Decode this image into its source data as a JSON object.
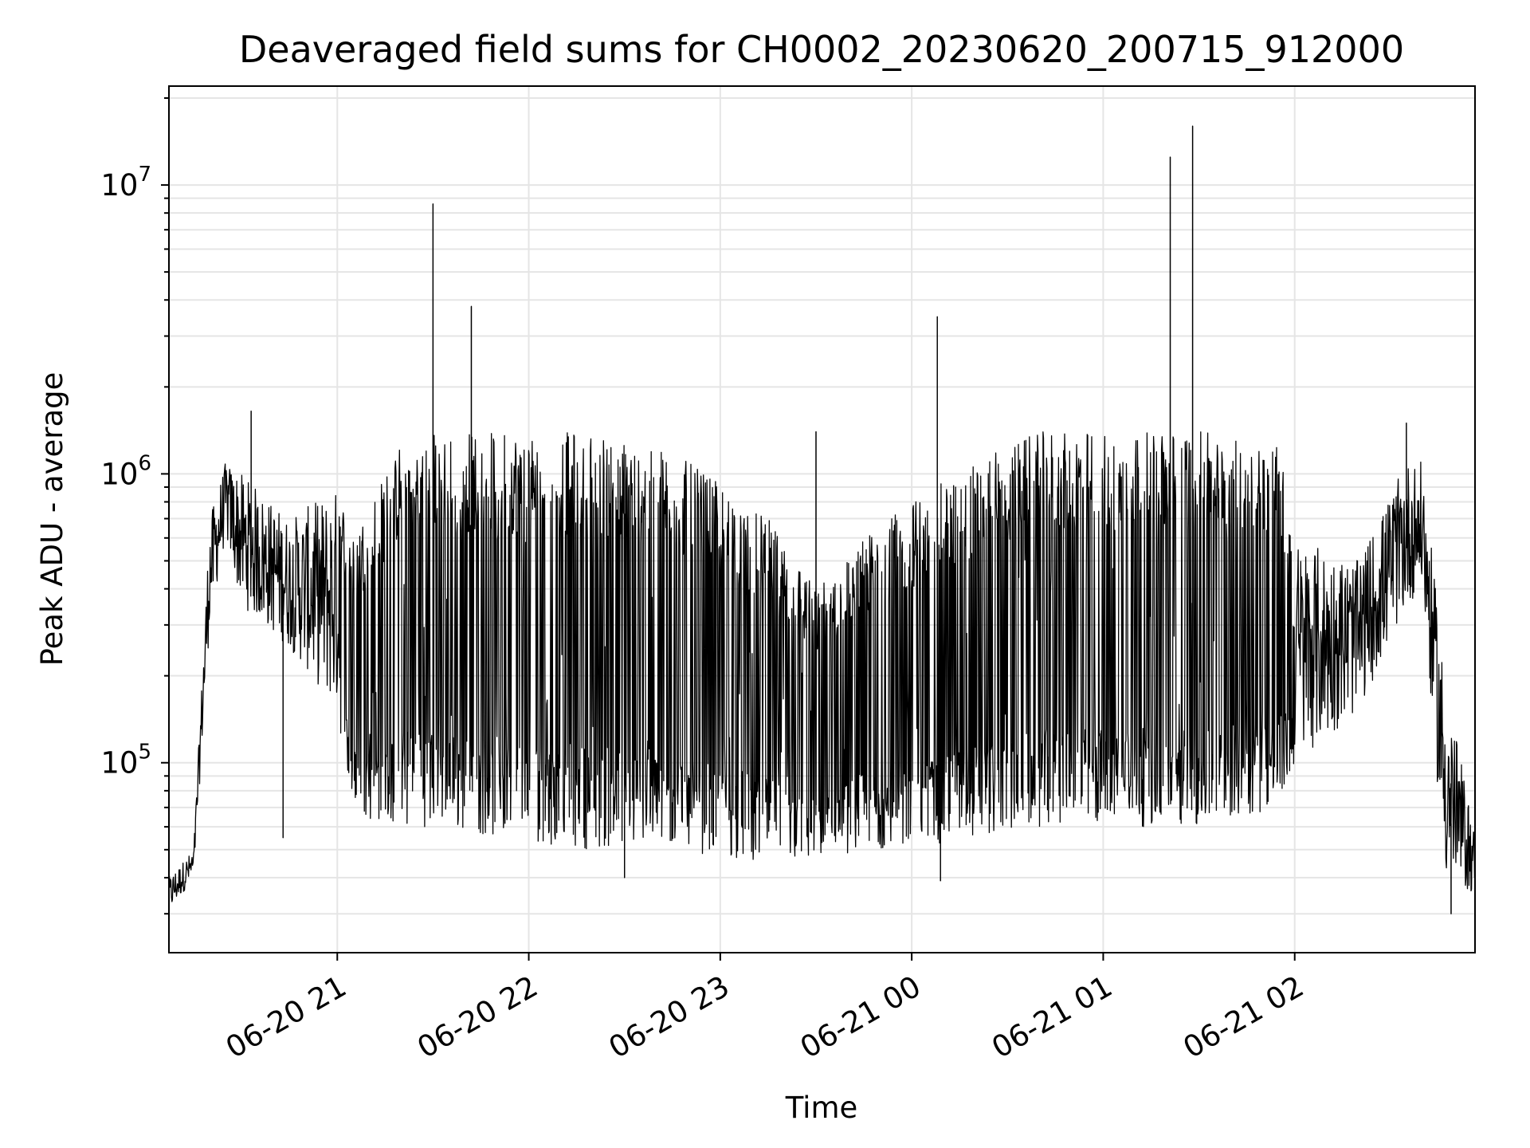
{
  "chart_data": {
    "type": "line",
    "title": "Deaveraged field sums for CH0002_20230620_200715_912000",
    "xlabel": "Time",
    "ylabel": "Peak ADU - average",
    "yscale": "log",
    "ylim": [
      22000,
      22000000
    ],
    "xlim": [
      "2023-06-20 20:07:15",
      "2023-06-21 02:56:30"
    ],
    "grid": true,
    "line_color": "#000000",
    "grid_color": "#e5e5e5",
    "x_ticks": [
      {
        "t": "2023-06-20 21:00",
        "label": "06-20 21"
      },
      {
        "t": "2023-06-20 22:00",
        "label": "06-20 22"
      },
      {
        "t": "2023-06-20 23:00",
        "label": "06-20 23"
      },
      {
        "t": "2023-06-21 00:00",
        "label": "06-21 00"
      },
      {
        "t": "2023-06-21 01:00",
        "label": "06-21 01"
      },
      {
        "t": "2023-06-21 02:00",
        "label": "06-21 02"
      }
    ],
    "y_ticks": [
      {
        "value": 100000,
        "mantissa": "10",
        "exponent": "5"
      },
      {
        "value": 1000000,
        "mantissa": "10",
        "exponent": "6"
      },
      {
        "value": 10000000,
        "mantissa": "10",
        "exponent": "7"
      }
    ],
    "envelope": [
      {
        "t": "2023-06-20 20:07",
        "low": 30000,
        "high": 40000
      },
      {
        "t": "2023-06-20 20:15",
        "low": 40000,
        "high": 50000
      },
      {
        "t": "2023-06-20 20:20",
        "low": 300000,
        "high": 700000
      },
      {
        "t": "2023-06-20 20:25",
        "low": 600000,
        "high": 1100000
      },
      {
        "t": "2023-06-20 20:30",
        "low": 350000,
        "high": 1000000
      },
      {
        "t": "2023-06-20 20:45",
        "low": 250000,
        "high": 700000
      },
      {
        "t": "2023-06-20 21:00",
        "low": 150000,
        "high": 900000
      },
      {
        "t": "2023-06-20 21:05",
        "low": 65000,
        "high": 600000
      },
      {
        "t": "2023-06-20 21:20",
        "low": 60000,
        "high": 1300000
      },
      {
        "t": "2023-06-20 21:30",
        "low": 60000,
        "high": 1400000
      },
      {
        "t": "2023-06-20 21:50",
        "low": 55000,
        "high": 1400000
      },
      {
        "t": "2023-06-20 22:20",
        "low": 50000,
        "high": 1400000
      },
      {
        "t": "2023-06-20 22:45",
        "low": 50000,
        "high": 1200000
      },
      {
        "t": "2023-06-20 23:15",
        "low": 45000,
        "high": 700000
      },
      {
        "t": "2023-06-20 23:30",
        "low": 45000,
        "high": 400000
      },
      {
        "t": "2023-06-20 23:45",
        "low": 50000,
        "high": 600000
      },
      {
        "t": "2023-06-21 00:00",
        "low": 50000,
        "high": 800000
      },
      {
        "t": "2023-06-21 00:20",
        "low": 55000,
        "high": 1100000
      },
      {
        "t": "2023-06-21 00:40",
        "low": 60000,
        "high": 1400000
      },
      {
        "t": "2023-06-21 01:00",
        "low": 60000,
        "high": 1400000
      },
      {
        "t": "2023-06-21 01:30",
        "low": 60000,
        "high": 1400000
      },
      {
        "t": "2023-06-21 01:55",
        "low": 70000,
        "high": 1300000
      },
      {
        "t": "2023-06-21 02:00",
        "low": 100000,
        "high": 600000
      },
      {
        "t": "2023-06-21 02:20",
        "low": 150000,
        "high": 500000
      },
      {
        "t": "2023-06-21 02:35",
        "low": 350000,
        "high": 1100000
      },
      {
        "t": "2023-06-21 02:40",
        "low": 400000,
        "high": 1100000
      },
      {
        "t": "2023-06-21 02:47",
        "low": 40000,
        "high": 200000
      },
      {
        "t": "2023-06-21 02:56",
        "low": 35000,
        "high": 60000
      }
    ],
    "peaks": [
      {
        "t": "2023-06-20 20:33",
        "value": 1650000
      },
      {
        "t": "2023-06-20 20:43",
        "value": 55000
      },
      {
        "t": "2023-06-20 21:30",
        "value": 8600000
      },
      {
        "t": "2023-06-20 21:42",
        "value": 3800000
      },
      {
        "t": "2023-06-20 22:30",
        "value": 40000
      },
      {
        "t": "2023-06-20 23:30",
        "value": 1400000
      },
      {
        "t": "2023-06-21 00:08",
        "value": 3500000
      },
      {
        "t": "2023-06-21 00:09",
        "value": 39000
      },
      {
        "t": "2023-06-21 01:21",
        "value": 12500000
      },
      {
        "t": "2023-06-21 01:28",
        "value": 16000000
      },
      {
        "t": "2023-06-21 02:35",
        "value": 1500000
      },
      {
        "t": "2023-06-21 02:49",
        "value": 30000
      }
    ]
  }
}
